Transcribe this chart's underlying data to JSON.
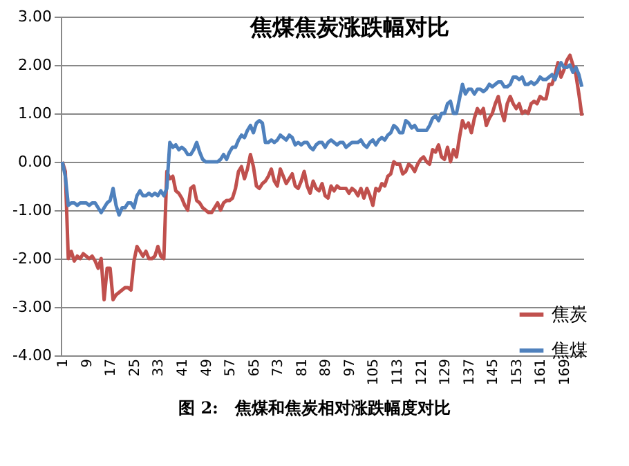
{
  "chart_data": {
    "type": "line",
    "title": "焦煤焦炭涨跌幅对比",
    "annotations": [
      "图 2:　焦煤和焦炭相对涨跌幅度对比"
    ],
    "categories": [
      "1",
      null,
      null,
      null,
      null,
      null,
      null,
      null,
      "9",
      null,
      null,
      null,
      null,
      null,
      null,
      null,
      "17",
      null,
      null,
      null,
      null,
      null,
      null,
      null,
      "25",
      null,
      null,
      null,
      null,
      null,
      null,
      null,
      "33",
      null,
      null,
      null,
      null,
      null,
      null,
      null,
      "41",
      null,
      null,
      null,
      null,
      null,
      null,
      null,
      "49",
      null,
      null,
      null,
      null,
      null,
      null,
      null,
      "57",
      null,
      null,
      null,
      null,
      null,
      null,
      null,
      "65",
      null,
      null,
      null,
      null,
      null,
      null,
      null,
      "73",
      null,
      null,
      null,
      null,
      null,
      null,
      null,
      "81",
      null,
      null,
      null,
      null,
      null,
      null,
      null,
      "89",
      null,
      null,
      null,
      null,
      null,
      null,
      null,
      "97",
      null,
      null,
      null,
      null,
      null,
      null,
      null,
      "105",
      null,
      null,
      null,
      null,
      null,
      null,
      null,
      "113",
      null,
      null,
      null,
      null,
      null,
      null,
      null,
      "121",
      null,
      null,
      null,
      null,
      null,
      null,
      null,
      "129",
      null,
      null,
      null,
      null,
      null,
      null,
      null,
      "137",
      null,
      null,
      null,
      null,
      null,
      null,
      null,
      "145",
      null,
      null,
      null,
      null,
      null,
      null,
      null,
      "153",
      null,
      null,
      null,
      null,
      null,
      null,
      null,
      "161",
      null,
      null,
      null,
      null,
      null,
      null,
      null,
      "169",
      null,
      null,
      null,
      null,
      null,
      null
    ],
    "series": [
      {
        "name": "焦炭",
        "color": "#c0504d",
        "values": [
          0,
          -0.2,
          -2.0,
          -1.85,
          -2.05,
          -1.95,
          -2.0,
          -1.9,
          -1.95,
          -2.0,
          -1.95,
          -2.05,
          -2.2,
          -2.0,
          -2.85,
          -2.2,
          -2.2,
          -2.85,
          -2.75,
          -2.7,
          -2.65,
          -2.6,
          -2.6,
          -2.65,
          -2.05,
          -1.75,
          -1.85,
          -1.95,
          -1.85,
          -2.0,
          -2.0,
          -1.95,
          -1.75,
          -1.95,
          -2.0,
          -0.2,
          -0.35,
          -0.3,
          -0.6,
          -0.65,
          -0.75,
          -0.9,
          -1.0,
          -0.55,
          -0.5,
          -0.8,
          -0.85,
          -0.95,
          -1.0,
          -1.05,
          -1.05,
          -0.95,
          -0.85,
          -1.0,
          -0.85,
          -0.8,
          -0.8,
          -0.75,
          -0.55,
          -0.2,
          -0.1,
          -0.35,
          -0.15,
          0.15,
          -0.1,
          -0.5,
          -0.55,
          -0.45,
          -0.4,
          -0.3,
          -0.15,
          -0.4,
          -0.5,
          -0.15,
          -0.3,
          -0.45,
          -0.35,
          -0.25,
          -0.5,
          -0.55,
          -0.4,
          -0.2,
          -0.5,
          -0.65,
          -0.4,
          -0.55,
          -0.6,
          -0.45,
          -0.7,
          -0.75,
          -0.5,
          -0.6,
          -0.5,
          -0.55,
          -0.55,
          -0.55,
          -0.65,
          -0.55,
          -0.6,
          -0.7,
          -0.55,
          -0.75,
          -0.55,
          -0.7,
          -0.9,
          -0.55,
          -0.6,
          -0.45,
          -0.5,
          -0.3,
          -0.25,
          0.0,
          -0.05,
          -0.05,
          -0.25,
          -0.2,
          -0.05,
          -0.1,
          -0.2,
          -0.05,
          0.05,
          0.1,
          0.0,
          -0.05,
          0.25,
          0.2,
          0.35,
          0.1,
          0.05,
          0.3,
          0.0,
          0.25,
          0.1,
          0.5,
          0.85,
          0.7,
          0.8,
          0.6,
          0.9,
          1.1,
          1.0,
          1.1,
          0.75,
          0.9,
          1.0,
          1.2,
          1.35,
          1.05,
          0.85,
          1.2,
          1.35,
          1.2,
          1.1,
          1.2,
          1.0,
          1.05,
          1.0,
          1.2,
          1.25,
          1.2,
          1.35,
          1.3,
          1.3,
          1.6,
          1.6,
          1.8,
          2.05,
          1.75,
          1.9,
          2.1,
          2.2,
          2.0,
          1.8,
          1.4,
          0.95
        ]
      },
      {
        "name": "焦煤",
        "color": "#4f81bd",
        "values": [
          0,
          -0.3,
          -0.9,
          -0.85,
          -0.85,
          -0.9,
          -0.85,
          -0.85,
          -0.85,
          -0.9,
          -0.85,
          -0.85,
          -0.95,
          -1.05,
          -0.95,
          -0.85,
          -0.8,
          -0.55,
          -0.9,
          -1.1,
          -0.95,
          -0.95,
          -0.85,
          -0.85,
          -0.95,
          -0.7,
          -0.6,
          -0.7,
          -0.7,
          -0.65,
          -0.7,
          -0.65,
          -0.7,
          -0.6,
          -0.7,
          -0.55,
          0.4,
          0.3,
          0.35,
          0.25,
          0.3,
          0.25,
          0.15,
          0.15,
          0.25,
          0.4,
          0.2,
          0.05,
          0,
          0,
          0,
          0,
          0,
          0.05,
          0.15,
          0.05,
          0.2,
          0.3,
          0.3,
          0.45,
          0.55,
          0.5,
          0.65,
          0.75,
          0.6,
          0.8,
          0.85,
          0.8,
          0.4,
          0.4,
          0.45,
          0.4,
          0.45,
          0.55,
          0.5,
          0.45,
          0.55,
          0.5,
          0.35,
          0.4,
          0.35,
          0.4,
          0.4,
          0.3,
          0.25,
          0.35,
          0.4,
          0.4,
          0.3,
          0.4,
          0.45,
          0.4,
          0.35,
          0.4,
          0.4,
          0.3,
          0.35,
          0.4,
          0.4,
          0.4,
          0.45,
          0.35,
          0.3,
          0.4,
          0.45,
          0.35,
          0.45,
          0.5,
          0.45,
          0.55,
          0.6,
          0.75,
          0.7,
          0.6,
          0.6,
          0.85,
          0.8,
          0.7,
          0.75,
          0.65,
          0.65,
          0.65,
          0.65,
          0.75,
          0.9,
          0.95,
          0.85,
          1.0,
          1.0,
          1.2,
          1.25,
          1.0,
          1.0,
          1.3,
          1.6,
          1.4,
          1.5,
          1.5,
          1.4,
          1.5,
          1.5,
          1.45,
          1.5,
          1.6,
          1.55,
          1.6,
          1.65,
          1.65,
          1.55,
          1.55,
          1.6,
          1.75,
          1.75,
          1.7,
          1.75,
          1.6,
          1.6,
          1.65,
          1.6,
          1.65,
          1.75,
          1.7,
          1.7,
          1.75,
          1.8,
          1.7,
          1.9,
          2.05,
          1.95,
          1.95,
          2.0,
          1.85,
          1.95,
          1.8,
          1.55
        ]
      }
    ],
    "ylim": [
      -4,
      3
    ],
    "yticks": [
      {
        "value": -4,
        "label": "-4.00"
      },
      {
        "value": -3,
        "label": "-3.00"
      },
      {
        "value": -2,
        "label": "-2.00"
      },
      {
        "value": -1,
        "label": "-1.00"
      },
      {
        "value": 0,
        "label": "0.00"
      },
      {
        "value": 1,
        "label": "1.00"
      },
      {
        "value": 2,
        "label": "2.00"
      },
      {
        "value": 3,
        "label": "3.00"
      }
    ],
    "grid": "y",
    "legend": "bottom right",
    "marker": "none",
    "line_style": "solid"
  }
}
